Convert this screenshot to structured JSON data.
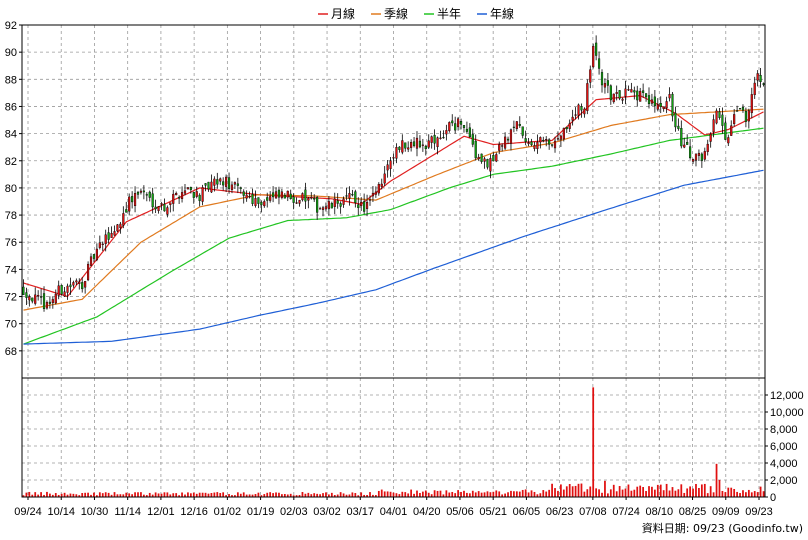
{
  "chart_data": {
    "type": "candlestick",
    "legend": [
      {
        "name": "月線",
        "color": "#e02020"
      },
      {
        "name": "季線",
        "color": "#e07a1f"
      },
      {
        "name": "半年",
        "color": "#22c422"
      },
      {
        "name": "年線",
        "color": "#1f5fd6"
      }
    ],
    "price_axis": {
      "ylim": [
        66,
        92
      ],
      "ticks": [
        68,
        70,
        72,
        74,
        76,
        78,
        80,
        82,
        84,
        86,
        88,
        90,
        92
      ]
    },
    "volume_axis": {
      "ylim": [
        0,
        14000
      ],
      "ticks": [
        0,
        2000,
        4000,
        6000,
        8000,
        10000,
        12000
      ],
      "tick_labels": [
        "0",
        "2,000",
        "4,000",
        "6,000",
        "8,000",
        "10,000",
        "12,000"
      ]
    },
    "x_tick_labels": [
      "09/24",
      "10/14",
      "10/30",
      "11/14",
      "12/01",
      "12/16",
      "01/02",
      "01/19",
      "02/03",
      "03/02",
      "03/17",
      "04/01",
      "04/20",
      "05/06",
      "05/21",
      "06/05",
      "06/23",
      "07/08",
      "07/24",
      "08/10",
      "08/25",
      "09/09",
      "09/23"
    ],
    "close_anchors": [
      [
        0,
        72.5
      ],
      [
        4,
        71.8
      ],
      [
        8,
        71.4
      ],
      [
        12,
        72.4
      ],
      [
        16,
        72.8
      ],
      [
        20,
        73.0
      ],
      [
        24,
        75.0
      ],
      [
        28,
        76.2
      ],
      [
        32,
        77.2
      ],
      [
        36,
        79.0
      ],
      [
        40,
        79.8
      ],
      [
        44,
        79.0
      ],
      [
        48,
        78.6
      ],
      [
        52,
        79.5
      ],
      [
        56,
        80.0
      ],
      [
        60,
        79.4
      ],
      [
        64,
        80.2
      ],
      [
        68,
        80.5
      ],
      [
        72,
        80.0
      ],
      [
        76,
        79.5
      ],
      [
        80,
        79.0
      ],
      [
        84,
        79.2
      ],
      [
        88,
        79.4
      ],
      [
        92,
        79.3
      ],
      [
        96,
        79.2
      ],
      [
        100,
        78.6
      ],
      [
        104,
        78.6
      ],
      [
        108,
        79.0
      ],
      [
        112,
        79.3
      ],
      [
        116,
        78.5
      ],
      [
        120,
        79.5
      ],
      [
        124,
        81.5
      ],
      [
        128,
        83.0
      ],
      [
        132,
        83.5
      ],
      [
        136,
        83.2
      ],
      [
        140,
        83.6
      ],
      [
        144,
        84.3
      ],
      [
        148,
        84.8
      ],
      [
        152,
        83.8
      ],
      [
        156,
        81.5
      ],
      [
        160,
        82.3
      ],
      [
        164,
        83.5
      ],
      [
        168,
        84.6
      ],
      [
        172,
        83.2
      ],
      [
        176,
        83.5
      ],
      [
        180,
        83.4
      ],
      [
        184,
        84.2
      ],
      [
        188,
        85.5
      ],
      [
        191,
        86.0
      ],
      [
        194,
        90.0
      ],
      [
        197,
        88.0
      ],
      [
        200,
        86.8
      ],
      [
        204,
        87.0
      ],
      [
        208,
        86.9
      ],
      [
        212,
        86.7
      ],
      [
        216,
        85.8
      ],
      [
        220,
        86.5
      ],
      [
        224,
        83.3
      ],
      [
        228,
        82.2
      ],
      [
        232,
        82.5
      ],
      [
        234,
        84.2
      ],
      [
        236,
        85.5
      ],
      [
        238,
        84.6
      ],
      [
        240,
        83.3
      ],
      [
        242,
        85.2
      ],
      [
        244,
        86.2
      ],
      [
        246,
        85.0
      ],
      [
        248,
        87.0
      ],
      [
        250,
        88.3
      ],
      [
        252,
        88.0
      ]
    ],
    "ma_lines": {
      "月線": [
        [
          0,
          73.0
        ],
        [
          15,
          72.0
        ],
        [
          35,
          77.5
        ],
        [
          60,
          80.0
        ],
        [
          80,
          79.5
        ],
        [
          105,
          79.2
        ],
        [
          115,
          78.8
        ],
        [
          125,
          80.5
        ],
        [
          150,
          83.8
        ],
        [
          160,
          83.2
        ],
        [
          180,
          83.5
        ],
        [
          195,
          86.5
        ],
        [
          210,
          86.8
        ],
        [
          222,
          85.5
        ],
        [
          232,
          83.9
        ],
        [
          240,
          84.3
        ],
        [
          252,
          85.6
        ]
      ],
      "季線": [
        [
          0,
          71.0
        ],
        [
          20,
          71.8
        ],
        [
          40,
          76.0
        ],
        [
          60,
          78.6
        ],
        [
          80,
          79.5
        ],
        [
          100,
          79.4
        ],
        [
          120,
          79.1
        ],
        [
          140,
          80.9
        ],
        [
          160,
          82.6
        ],
        [
          180,
          83.3
        ],
        [
          200,
          84.6
        ],
        [
          220,
          85.4
        ],
        [
          252,
          85.8
        ]
      ],
      "半年": [
        [
          0,
          68.5
        ],
        [
          25,
          70.5
        ],
        [
          50,
          73.8
        ],
        [
          70,
          76.3
        ],
        [
          90,
          77.6
        ],
        [
          110,
          77.8
        ],
        [
          125,
          78.4
        ],
        [
          145,
          80.0
        ],
        [
          160,
          81.0
        ],
        [
          180,
          81.6
        ],
        [
          200,
          82.5
        ],
        [
          220,
          83.5
        ],
        [
          252,
          84.4
        ]
      ],
      "年線": [
        [
          0,
          68.5
        ],
        [
          30,
          68.7
        ],
        [
          60,
          69.6
        ],
        [
          80,
          70.6
        ],
        [
          100,
          71.5
        ],
        [
          120,
          72.5
        ],
        [
          140,
          74.1
        ],
        [
          170,
          76.4
        ],
        [
          200,
          78.5
        ],
        [
          225,
          80.2
        ],
        [
          252,
          81.3
        ]
      ]
    },
    "volume_spikes": [
      [
        194,
        12900
      ],
      [
        198,
        1900
      ],
      [
        200,
        900
      ],
      [
        218,
        800
      ],
      [
        236,
        3900
      ],
      [
        240,
        1100
      ],
      [
        237,
        2000
      ],
      [
        245,
        800
      ],
      [
        249,
        700
      ]
    ],
    "footer": "資料日期: 09/23  (Goodinfo.tw)"
  }
}
